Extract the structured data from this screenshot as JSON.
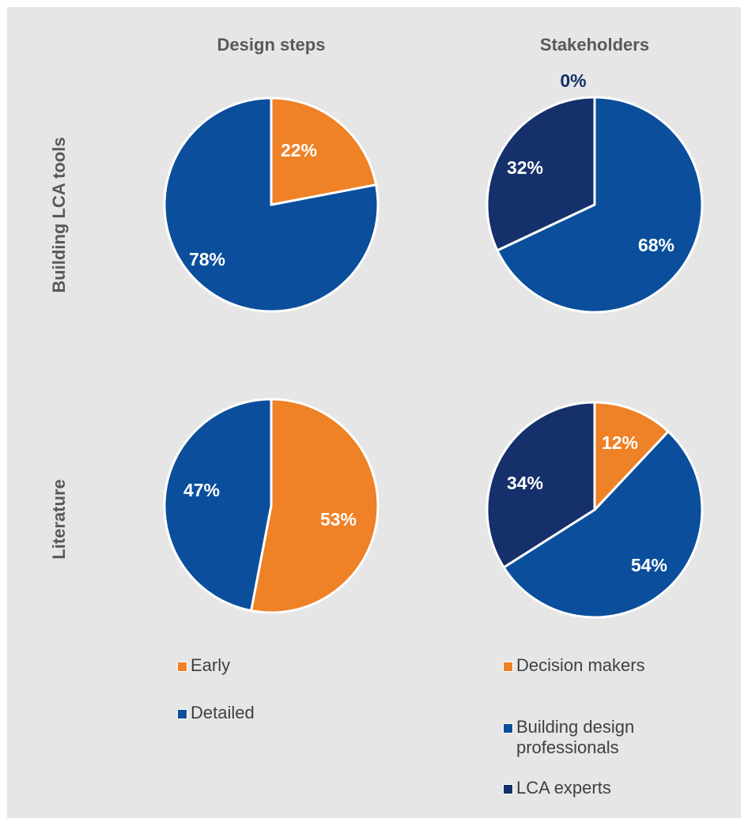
{
  "colors": {
    "early": "#ef8126",
    "detailed": "#0b4f9c",
    "decision_makers": "#ef8126",
    "building_design": "#0b4f9c",
    "lca_experts": "#15306a",
    "text": "#595959",
    "background": "#e6e6e6"
  },
  "chart_data": [
    {
      "type": "pie",
      "title": "Design steps",
      "row": "Building LCA tools",
      "slices": [
        {
          "name": "Early",
          "value": 22,
          "label": "22%",
          "color": "#ef8126"
        },
        {
          "name": "Detailed",
          "value": 78,
          "label": "78%",
          "color": "#0b4f9c"
        }
      ]
    },
    {
      "type": "pie",
      "title": "Stakeholders",
      "row": "Building LCA tools",
      "slices": [
        {
          "name": "Decision makers",
          "value": 0,
          "label": "0%",
          "color": "#ef8126"
        },
        {
          "name": "Building design professionals",
          "value": 68,
          "label": "68%",
          "color": "#0b4f9c"
        },
        {
          "name": "LCA experts",
          "value": 32,
          "label": "32%",
          "color": "#15306a"
        }
      ]
    },
    {
      "type": "pie",
      "title": "Design steps",
      "row": "Literature",
      "slices": [
        {
          "name": "Early",
          "value": 53,
          "label": "53%",
          "color": "#ef8126"
        },
        {
          "name": "Detailed",
          "value": 47,
          "label": "47%",
          "color": "#0b4f9c"
        }
      ]
    },
    {
      "type": "pie",
      "title": "Stakeholders",
      "row": "Literature",
      "slices": [
        {
          "name": "Decision makers",
          "value": 12,
          "label": "12%",
          "color": "#ef8126"
        },
        {
          "name": "Building design professionals",
          "value": 54,
          "label": "54%",
          "color": "#0b4f9c"
        },
        {
          "name": "LCA experts",
          "value": 34,
          "label": "34%",
          "color": "#15306a"
        }
      ]
    }
  ],
  "columns": {
    "left": "Design steps",
    "right": "Stakeholders"
  },
  "rows": {
    "top": "Building LCA tools",
    "bottom": "Literature"
  },
  "legends": {
    "design_steps": [
      {
        "label": "Early",
        "color": "#ef8126"
      },
      {
        "label": "Detailed",
        "color": "#0b4f9c"
      }
    ],
    "stakeholders": [
      {
        "label": "Decision makers",
        "color": "#ef8126"
      },
      {
        "label": "Building design\nprofessionals",
        "color": "#0b4f9c"
      },
      {
        "label": "LCA experts",
        "color": "#15306a"
      }
    ]
  }
}
